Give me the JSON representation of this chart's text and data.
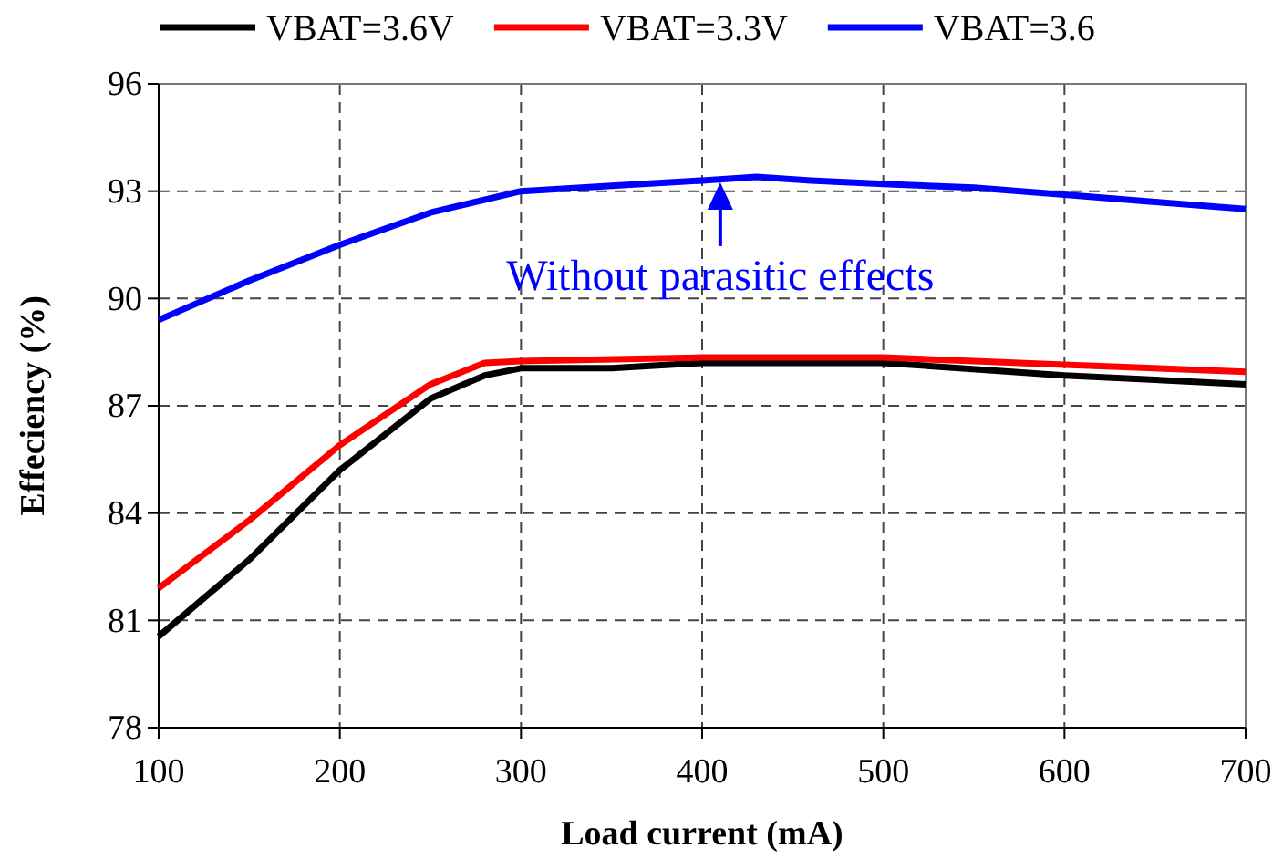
{
  "chart_data": {
    "type": "line",
    "xlabel": "Load current (mA)",
    "ylabel": "Effeciency (%)",
    "xlim": [
      100,
      700
    ],
    "xticks": [
      100,
      200,
      300,
      400,
      500,
      600,
      700
    ],
    "ylim": [
      78,
      96
    ],
    "yticks": [
      78,
      81,
      84,
      87,
      90,
      93,
      96
    ],
    "grid": true,
    "legend": "top",
    "line_style": "solid",
    "annotations": [
      {
        "text": "Without parasitic effects",
        "x": 410,
        "y": 93.3
      }
    ],
    "series": [
      {
        "name": "VBAT=3.6V",
        "color": "#000000",
        "x": [
          100,
          150,
          200,
          250,
          280,
          300,
          350,
          400,
          500,
          600,
          700
        ],
        "values": [
          80.55,
          82.7,
          85.2,
          87.2,
          87.85,
          88.05,
          88.05,
          88.2,
          88.2,
          87.85,
          87.6
        ]
      },
      {
        "name": "VBAT=3.3V",
        "color": "#ff0000",
        "x": [
          100,
          150,
          200,
          250,
          280,
          300,
          400,
          500,
          550,
          600,
          700
        ],
        "values": [
          81.9,
          83.8,
          85.9,
          87.6,
          88.2,
          88.25,
          88.35,
          88.35,
          88.25,
          88.15,
          87.95
        ]
      },
      {
        "name": "VBAT=3.6",
        "color": "#0000ff",
        "x": [
          100,
          150,
          200,
          250,
          300,
          350,
          400,
          430,
          460,
          500,
          550,
          600,
          650,
          700
        ],
        "values": [
          89.4,
          90.5,
          91.5,
          92.4,
          93.0,
          93.15,
          93.3,
          93.4,
          93.3,
          93.2,
          93.1,
          92.9,
          92.7,
          92.5
        ]
      }
    ]
  }
}
